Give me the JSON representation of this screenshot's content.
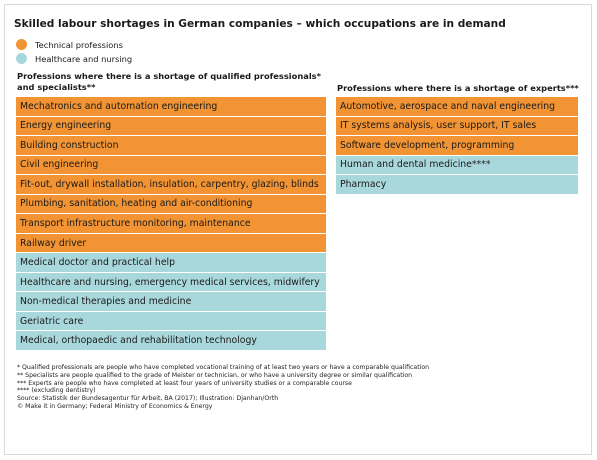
{
  "title": "Skilled labour shortages in German companies – which occupations are in demand",
  "legend": [
    {
      "label": "Technical professions",
      "color": "#f29433"
    },
    {
      "label": "Healthcare and nursing",
      "color": "#a9d8dc"
    }
  ],
  "left_column": {
    "heading_line1": "Professions where there is a shortage of qualified professionals*",
    "heading_line2": "and specialists**",
    "items": [
      {
        "label": "Mechatronics and automation engineering",
        "category": "technical"
      },
      {
        "label": "Energy engineering",
        "category": "technical"
      },
      {
        "label": "Building construction",
        "category": "technical"
      },
      {
        "label": "Civil engineering",
        "category": "technical"
      },
      {
        "label": "Fit-out, drywall installation, insulation, carpentry, glazing, blinds",
        "category": "technical"
      },
      {
        "label": "Plumbing, sanitation, heating and air-conditioning",
        "category": "technical"
      },
      {
        "label": "Transport infrastructure monitoring, maintenance",
        "category": "technical"
      },
      {
        "label": "Railway driver",
        "category": "technical"
      },
      {
        "label": "Medical doctor and practical help",
        "category": "health"
      },
      {
        "label": "Healthcare and nursing, emergency medical services, midwifery",
        "category": "health"
      },
      {
        "label": "Non-medical therapies and medicine",
        "category": "health"
      },
      {
        "label": "Geriatric care",
        "category": "health"
      },
      {
        "label": "Medical, orthopaedic and rehabilitation technology",
        "category": "health"
      }
    ]
  },
  "right_column": {
    "heading": "Professions where there is a shortage of experts***",
    "items": [
      {
        "label": "Automotive, aerospace and naval engineering",
        "category": "technical"
      },
      {
        "label": "IT systems analysis, user support, IT sales",
        "category": "technical"
      },
      {
        "label": "Software development, programming",
        "category": "technical"
      },
      {
        "label": "Human and dental medicine****",
        "category": "health"
      },
      {
        "label": "Pharmacy",
        "category": "health"
      }
    ]
  },
  "footnotes": [
    "* Qualified professionals are people who have completed vocational training of at least two years or have a comparable qualification",
    "** Specialists are people qualified to the grade of Meister or technician, or who have a university degree or similar qualification",
    "*** Experts are people who have completed at least four years of university studies or a comparable course",
    "**** (excluding dentistry)",
    "Source: Statistik der Bundesagentur für Arbeit, BA (2017); Illustration: Djanhan/Orth",
    "© Make it in Germany; Federal Ministry of Economics & Energy"
  ]
}
